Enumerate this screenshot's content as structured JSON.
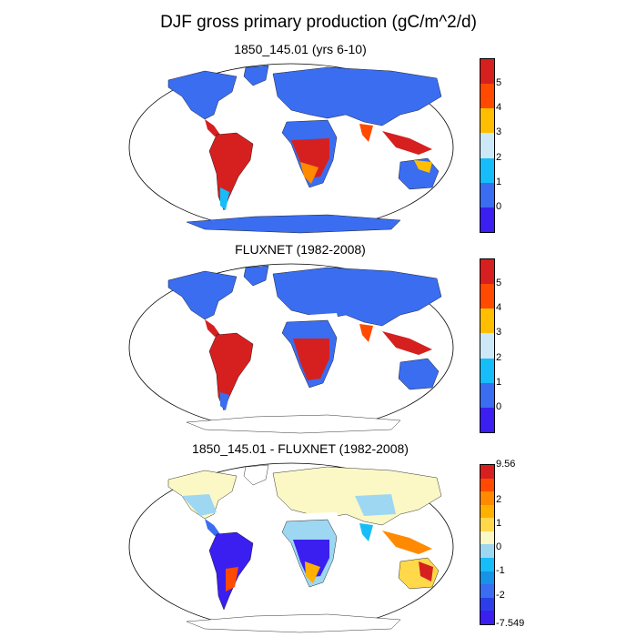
{
  "title": "DJF gross primary production (gC/m^2/d)",
  "panels": [
    {
      "subtitle": "1850_145.01 (yrs 6-10)",
      "colorbar": {
        "colors": [
          "#3a1ff0",
          "#3a6df0",
          "#17bdf8",
          "#cde9f7",
          "#ffbf00",
          "#ff4a00",
          "#d62020"
        ],
        "labels": [
          "0",
          "1",
          "2",
          "3",
          "4",
          "5"
        ]
      }
    },
    {
      "subtitle": "FLUXNET (1982-2008)",
      "colorbar": {
        "colors": [
          "#3a1ff0",
          "#3a6df0",
          "#17bdf8",
          "#cde9f7",
          "#ffbf00",
          "#ff4a00",
          "#d62020"
        ],
        "labels": [
          "0",
          "1",
          "2",
          "3",
          "4",
          "5"
        ]
      }
    },
    {
      "subtitle": "1850_145.01 - FLUXNET (1982-2008)",
      "colorbar": {
        "colors": [
          "#3a1ff0",
          "#2d3ee8",
          "#3a6df0",
          "#1792e6",
          "#17bdf8",
          "#9dd7f2",
          "#fbf8c6",
          "#ffd94a",
          "#ffb000",
          "#ff8a00",
          "#ff4a00",
          "#d62020"
        ],
        "labels": [
          "9.56",
          "2",
          "1",
          "0",
          "-1",
          "-2",
          "-7.549"
        ]
      }
    }
  ],
  "colors": {
    "land_blue": "#3a6df0",
    "tropics_red": "#d62020",
    "diff_yellow": "#fbf8c6",
    "diff_light_blue": "#9dd7f2"
  }
}
